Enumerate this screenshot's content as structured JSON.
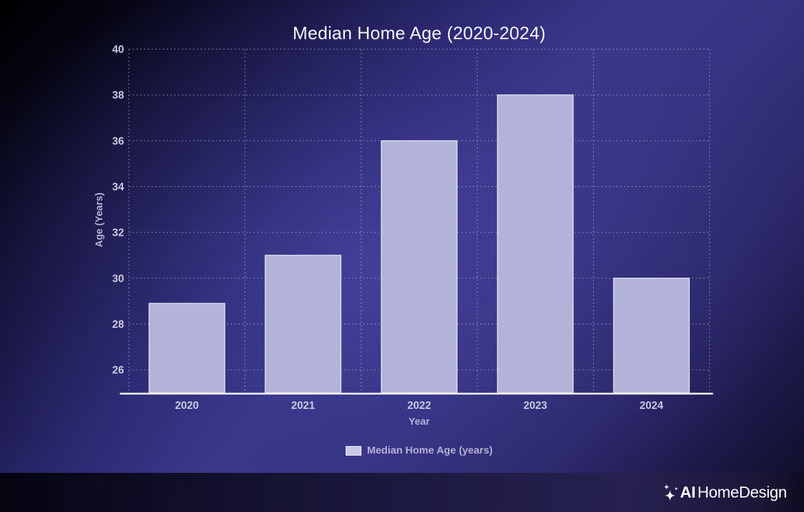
{
  "chart_data": {
    "type": "bar",
    "title": "Median Home Age (2020-2024)",
    "xlabel": "Year",
    "ylabel": "Age (Years)",
    "categories": [
      "2020",
      "2021",
      "2022",
      "2023",
      "2024"
    ],
    "values": [
      28.9,
      31,
      36,
      38,
      30
    ],
    "series_name": "Median Home Age (years)",
    "ylim": [
      25,
      40
    ],
    "yticks": [
      26,
      28,
      30,
      32,
      34,
      36,
      38,
      40
    ],
    "grid": "dashed",
    "legend_position": "bottom",
    "bar_color": "#b3b3d9",
    "bar_border_color": "#dcdcee"
  },
  "legend": {
    "label": "Median Home Age (years)",
    "swatch_color": "#c9c9e6"
  },
  "footer": {
    "logo_ai": "AI",
    "logo_name": "HomeDesign"
  },
  "theme": {
    "background_center": "#3a3789",
    "background_edge": "#000002",
    "footer_background": "#1d1a42",
    "title_color": "#f4f4f8",
    "tick_label_color": "#cbcbe4",
    "axis_label_color": "#b4b2d8",
    "gridline_color": "#cbcbe4",
    "axis_line_color": "#eef0f7",
    "logo_color": "#ffffff"
  }
}
